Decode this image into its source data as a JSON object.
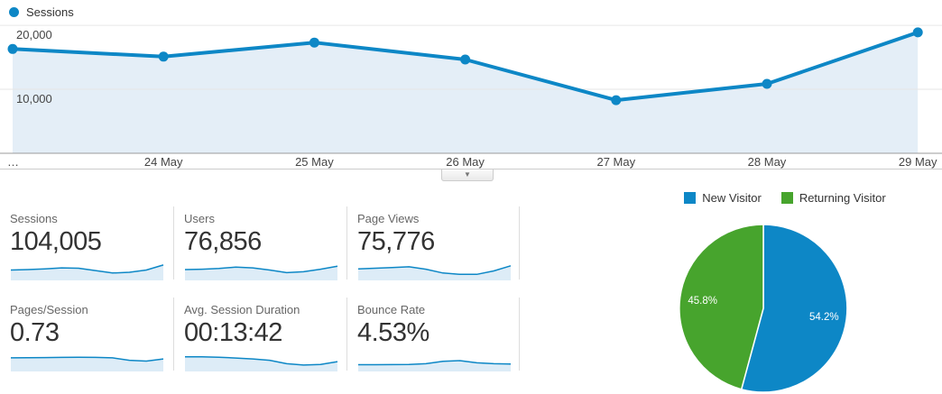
{
  "colors": {
    "blue": "#0d87c6",
    "green": "#47a42d",
    "area_fill": "#e4eef7",
    "spark_fill": "#ddecf7",
    "grid": "#e6e6e6",
    "axis": "#9b9b9b"
  },
  "timeline": {
    "legend_label": "Sessions",
    "y_ticks": [
      "20,000",
      "10,000"
    ],
    "x_ticks": [
      "…",
      "24 May",
      "25 May",
      "26 May",
      "27 May",
      "28 May",
      "29 May"
    ],
    "collapse_arrow": "▼"
  },
  "chart_data": [
    {
      "type": "line",
      "title": "Sessions",
      "x": [
        "…",
        "24 May",
        "25 May",
        "26 May",
        "27 May",
        "28 May",
        "29 May"
      ],
      "values": [
        16300,
        15100,
        17300,
        14650,
        8300,
        10850,
        18900
      ],
      "ylim": [
        0,
        20150
      ],
      "yticks": [
        10000,
        20000
      ],
      "grid": true,
      "legend_position": "top-left",
      "line_color": "#0d87c6"
    },
    {
      "type": "pie",
      "categories": [
        "New Visitor",
        "Returning Visitor"
      ],
      "values": [
        54.2,
        45.8
      ],
      "labels": [
        "54.2%",
        "45.8%"
      ],
      "colors": [
        "#0d87c6",
        "#47a42d"
      ],
      "legend_position": "top"
    },
    {
      "type": "line",
      "subtype": "sparklines",
      "series": [
        {
          "name": "Sessions",
          "values": [
            0.55,
            0.58,
            0.62,
            0.68,
            0.66,
            0.52,
            0.38,
            0.42,
            0.55,
            0.85
          ]
        },
        {
          "name": "Users",
          "values": [
            0.58,
            0.6,
            0.64,
            0.72,
            0.68,
            0.55,
            0.4,
            0.45,
            0.6,
            0.78
          ]
        },
        {
          "name": "Page Views",
          "values": [
            0.62,
            0.66,
            0.7,
            0.74,
            0.6,
            0.38,
            0.3,
            0.3,
            0.5,
            0.8
          ]
        },
        {
          "name": "Pages/Session",
          "values": [
            0.74,
            0.75,
            0.76,
            0.77,
            0.78,
            0.77,
            0.74,
            0.6,
            0.55,
            0.68
          ]
        },
        {
          "name": "Avg. Session Duration",
          "values": [
            0.8,
            0.8,
            0.78,
            0.73,
            0.68,
            0.6,
            0.4,
            0.32,
            0.36,
            0.52
          ]
        },
        {
          "name": "Bounce Rate",
          "values": [
            0.34,
            0.34,
            0.35,
            0.36,
            0.4,
            0.54,
            0.58,
            0.45,
            0.4,
            0.38
          ]
        }
      ]
    }
  ],
  "metrics": [
    {
      "label": "Sessions",
      "value": "104,005",
      "spark": [
        0.55,
        0.58,
        0.62,
        0.68,
        0.66,
        0.52,
        0.38,
        0.42,
        0.55,
        0.85
      ]
    },
    {
      "label": "Users",
      "value": "76,856",
      "spark": [
        0.58,
        0.6,
        0.64,
        0.72,
        0.68,
        0.55,
        0.4,
        0.45,
        0.6,
        0.78
      ]
    },
    {
      "label": "Page Views",
      "value": "75,776",
      "spark": [
        0.62,
        0.66,
        0.7,
        0.74,
        0.6,
        0.38,
        0.3,
        0.3,
        0.5,
        0.8
      ]
    },
    {
      "label": "Pages/Session",
      "value": "0.73",
      "spark": [
        0.74,
        0.75,
        0.76,
        0.77,
        0.78,
        0.77,
        0.74,
        0.6,
        0.55,
        0.68
      ]
    },
    {
      "label": "Avg. Session Duration",
      "value": "00:13:42",
      "spark": [
        0.8,
        0.8,
        0.78,
        0.73,
        0.68,
        0.6,
        0.4,
        0.32,
        0.36,
        0.52
      ]
    },
    {
      "label": "Bounce Rate",
      "value": "4.53%",
      "spark": [
        0.34,
        0.34,
        0.35,
        0.36,
        0.4,
        0.54,
        0.58,
        0.45,
        0.4,
        0.38
      ]
    }
  ],
  "pie": {
    "legend": [
      {
        "label": "New Visitor",
        "color": "#0d87c6"
      },
      {
        "label": "Returning Visitor",
        "color": "#47a42d"
      }
    ]
  }
}
